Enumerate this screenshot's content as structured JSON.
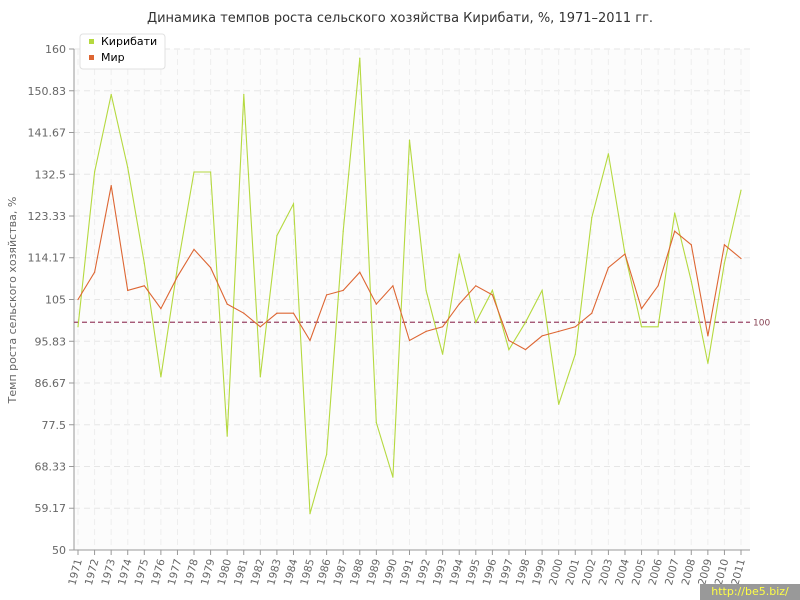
{
  "chart_data": {
    "type": "line",
    "title": "Динамика темпов роста сельского хозяйства Кирибати, %, 1971–2011 гг.",
    "ylabel": "Темп роста сельского хозяйства, %",
    "xlabel": "",
    "ylim": [
      50,
      160
    ],
    "y_ticks": [
      "50",
      "59.17",
      "68.33",
      "77.5",
      "86.67",
      "95.83",
      "105",
      "114.17",
      "123.33",
      "132.5",
      "141.67",
      "150.83",
      "160"
    ],
    "x": [
      "1971",
      "1972",
      "1973",
      "1974",
      "1975",
      "1976",
      "1977",
      "1978",
      "1979",
      "1980",
      "1981",
      "1982",
      "1983",
      "1984",
      "1985",
      "1986",
      "1987",
      "1988",
      "1989",
      "1990",
      "1991",
      "1992",
      "1993",
      "1994",
      "1995",
      "1996",
      "1997",
      "1998",
      "1999",
      "2000",
      "2001",
      "2002",
      "2003",
      "2004",
      "2005",
      "2006",
      "2007",
      "2008",
      "2009",
      "2010",
      "2011"
    ],
    "series": [
      {
        "name": "Кирибати",
        "color": "#b5d93f",
        "values": [
          99,
          133,
          150,
          134,
          113,
          88,
          112,
          133,
          133,
          75,
          150,
          88,
          119,
          126,
          58,
          71,
          120,
          158,
          78,
          66,
          140,
          107,
          93,
          115,
          100,
          107,
          94,
          100,
          107,
          82,
          93,
          123,
          137,
          115,
          99,
          99,
          124,
          109,
          91,
          113,
          129
        ]
      },
      {
        "name": "Мир",
        "color": "#dd6633",
        "values": [
          105,
          111,
          130,
          107,
          108,
          103,
          110,
          116,
          112,
          104,
          102,
          99,
          102,
          102,
          96,
          106,
          107,
          111,
          104,
          108,
          96,
          98,
          99,
          104,
          108,
          106,
          96,
          94,
          97,
          98,
          99,
          102,
          112,
          115,
          103,
          108,
          120,
          117,
          97,
          117,
          114
        ]
      }
    ],
    "reference_line": {
      "value": 100,
      "label": "100",
      "color": "#994466"
    },
    "grid": true,
    "legend_position": "top-left"
  },
  "watermark": "http://be5.biz/"
}
